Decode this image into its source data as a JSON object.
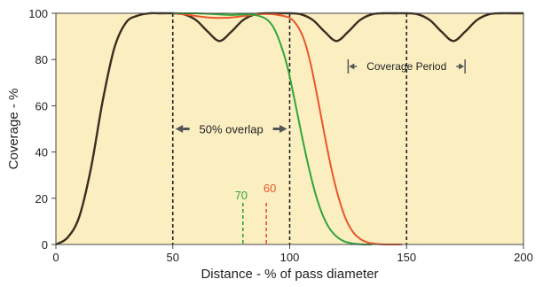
{
  "chart_data": {
    "type": "line",
    "title": "",
    "xlabel": "Distance - % of pass diameter",
    "ylabel": "Coverage - %",
    "xlim": [
      0,
      200
    ],
    "ylim": [
      0,
      100
    ],
    "xticks": [
      0,
      50,
      100,
      150,
      200
    ],
    "yticks": [
      0,
      20,
      40,
      60,
      80,
      100
    ],
    "grid": false,
    "background": "#fbefc2",
    "series": [
      {
        "color": "#3b2d1f",
        "x": [
          0,
          5,
          10,
          15,
          20,
          25,
          30,
          35,
          40,
          45,
          50,
          55,
          60,
          65,
          70,
          75,
          80,
          85,
          90,
          95,
          100,
          105,
          110,
          115,
          120,
          125,
          130,
          135,
          140,
          145,
          150,
          155,
          160,
          165,
          170,
          175,
          180,
          185,
          190,
          195,
          200
        ],
        "y": [
          0,
          3,
          12,
          33,
          62,
          85,
          96,
          99,
          100,
          100,
          100,
          99.5,
          97,
          92,
          88,
          92,
          97,
          99.5,
          100,
          100,
          100,
          99.5,
          97,
          92,
          88,
          92,
          97,
          99.5,
          100,
          100,
          100,
          99.5,
          97,
          92,
          88,
          92,
          97,
          99.5,
          100,
          100,
          100
        ]
      },
      {
        "color": "#e8572a",
        "x": [
          50,
          55,
          60,
          65,
          70,
          75,
          80,
          85,
          90,
          95,
          100,
          103,
          106,
          109,
          112,
          115,
          118,
          121,
          124,
          127,
          130,
          133,
          136,
          139,
          142,
          145,
          148
        ],
        "y": [
          100,
          99.5,
          98.8,
          98.2,
          98,
          98.2,
          98.8,
          99.4,
          99.7,
          99.3,
          98,
          95,
          89,
          78,
          63,
          47,
          32,
          20,
          11,
          5.5,
          2.5,
          1,
          0.4,
          0.1,
          0,
          0,
          0
        ]
      },
      {
        "color": "#2fa53a",
        "x": [
          50,
          55,
          60,
          65,
          70,
          75,
          80,
          85,
          90,
          93,
          96,
          99,
          102,
          105,
          108,
          111,
          114,
          117,
          120,
          123,
          126,
          129,
          132,
          135
        ],
        "y": [
          100,
          100,
          100,
          99.8,
          99.5,
          99.3,
          99.5,
          99.3,
          97.5,
          94,
          87,
          77,
          63,
          48,
          34,
          22,
          13,
          7,
          3.5,
          1.5,
          0.6,
          0.2,
          0,
          0
        ]
      }
    ],
    "annotations": [
      {
        "text": "50% overlap",
        "from_x": 50,
        "to_x": 100,
        "y": 50
      },
      {
        "text": "Coverage Period",
        "from_x": 125,
        "to_x": 175,
        "y": 77
      },
      {
        "text": "70",
        "x": 80,
        "y_from": 0,
        "y_to": 18,
        "color": "#2fa53a"
      },
      {
        "text": "60",
        "x": 90,
        "y_from": 0,
        "y_to": 18,
        "color": "#e8572a"
      }
    ],
    "reference_lines_x": [
      50,
      100,
      150
    ]
  }
}
